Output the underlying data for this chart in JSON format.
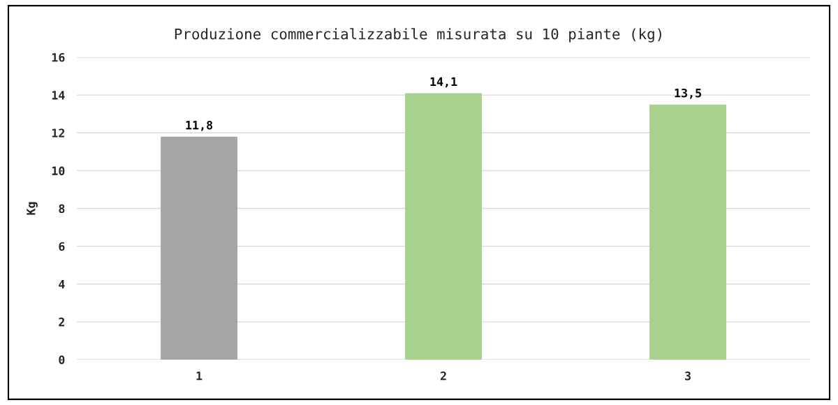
{
  "chart_data": {
    "type": "bar",
    "title": "Produzione commercializzabile misurata su 10 piante (kg)",
    "ylabel": "Kg",
    "categories": [
      "1",
      "2",
      "3"
    ],
    "values": [
      11.8,
      14.1,
      13.5
    ],
    "colors": [
      "#a5a5a5",
      "#a9d18e",
      "#a9d18e"
    ],
    "value_labels": [
      "11,8",
      "14,1",
      "13,5"
    ],
    "ylim": [
      0,
      16
    ],
    "yticks": [
      0,
      2,
      4,
      6,
      8,
      10,
      12,
      14,
      16
    ],
    "grid": "y"
  }
}
